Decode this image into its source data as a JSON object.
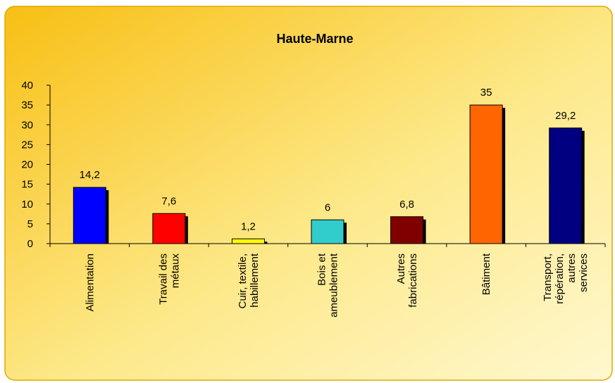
{
  "chart_data": {
    "type": "bar",
    "title": "Haute-Marne",
    "categories": [
      [
        "Alimentation"
      ],
      [
        "Travail des",
        "métaux"
      ],
      [
        "Cuir, textile,",
        "habillement"
      ],
      [
        "Bois et",
        "ameublement"
      ],
      [
        "Autres",
        "fabrications"
      ],
      [
        "Bâtiment"
      ],
      [
        "Transport,",
        "répération,",
        "autres",
        "services"
      ]
    ],
    "values": [
      14.2,
      7.6,
      1.2,
      6,
      6.8,
      35,
      29.2
    ],
    "value_labels": [
      "14,2",
      "7,6",
      "1,2",
      "6",
      "6,8",
      "35",
      "29,2"
    ],
    "colors": [
      "#0000ff",
      "#ff0000",
      "#ffff00",
      "#33cccc",
      "#800000",
      "#ff6600",
      "#000080"
    ],
    "ylim": [
      0,
      40
    ],
    "yticks": [
      0,
      5,
      10,
      15,
      20,
      25,
      30,
      35,
      40
    ],
    "grid": false
  }
}
